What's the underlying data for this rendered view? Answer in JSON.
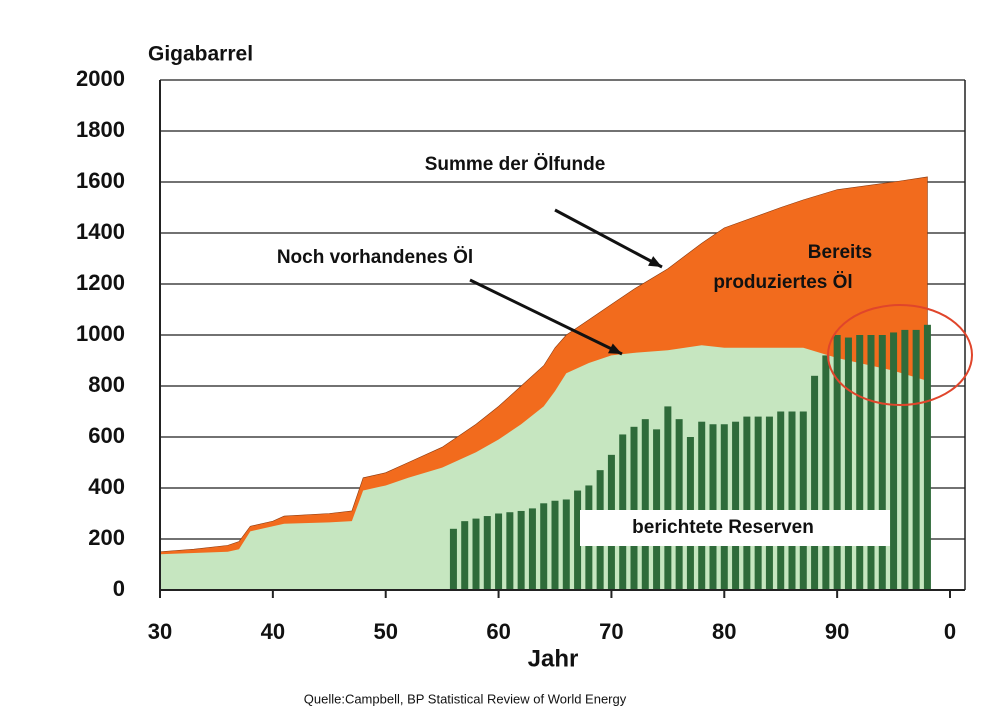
{
  "chart_data": {
    "type": "area",
    "title": "Gigabarrel",
    "x_label": "Jahr",
    "source": "Quelle:Campbell, BP Statistical Review of World Energy",
    "x": [
      30,
      33,
      36,
      37,
      38,
      40,
      41,
      45,
      47,
      48,
      50,
      52,
      55,
      58,
      60,
      62,
      64,
      65,
      66,
      68,
      70,
      72,
      75,
      78,
      80,
      85,
      87,
      90,
      95,
      98
    ],
    "series": [
      {
        "name": "Summe der Ölfunde",
        "color": "#f26b1d",
        "values": [
          150,
          160,
          175,
          190,
          250,
          270,
          290,
          300,
          310,
          440,
          460,
          500,
          560,
          650,
          720,
          800,
          880,
          950,
          1000,
          1060,
          1120,
          1180,
          1260,
          1360,
          1420,
          1500,
          1530,
          1570,
          1600,
          1620
        ]
      },
      {
        "name": "Noch vorhandenes Öl",
        "color": "#c6e6c0",
        "values": [
          140,
          145,
          150,
          160,
          230,
          250,
          260,
          265,
          270,
          390,
          410,
          440,
          480,
          540,
          590,
          650,
          720,
          780,
          850,
          890,
          920,
          930,
          940,
          960,
          950,
          950,
          950,
          910,
          860,
          820
        ]
      },
      {
        "name": "berichtete Reserven",
        "color": "#2f6b3a",
        "type": "bar",
        "x": [
          56,
          57,
          58,
          59,
          60,
          61,
          62,
          63,
          64,
          65,
          66,
          67,
          68,
          69,
          70,
          71,
          72,
          73,
          74,
          75,
          76,
          77,
          78,
          79,
          80,
          81,
          82,
          83,
          84,
          85,
          86,
          87,
          88,
          89,
          90,
          91,
          92,
          93,
          94,
          95,
          96,
          97,
          98
        ],
        "values": [
          240,
          270,
          280,
          290,
          300,
          305,
          310,
          320,
          340,
          350,
          355,
          390,
          410,
          470,
          530,
          610,
          640,
          670,
          630,
          720,
          670,
          600,
          660,
          650,
          650,
          660,
          680,
          680,
          680,
          700,
          700,
          700,
          840,
          920,
          1000,
          990,
          1000,
          1000,
          1000,
          1010,
          1020,
          1020,
          1040
        ]
      }
    ],
    "annotations": [
      "Bereits",
      "produziertes Öl"
    ],
    "xlim": [
      30,
      100
    ],
    "xticks": [
      30,
      40,
      50,
      60,
      70,
      80,
      90,
      {
        "value": 100,
        "label": "0"
      }
    ],
    "ylim": [
      0,
      2000
    ],
    "yticks": [
      0,
      200,
      400,
      600,
      800,
      1000,
      1200,
      1400,
      1600,
      1800,
      2000
    ],
    "grid": true
  }
}
